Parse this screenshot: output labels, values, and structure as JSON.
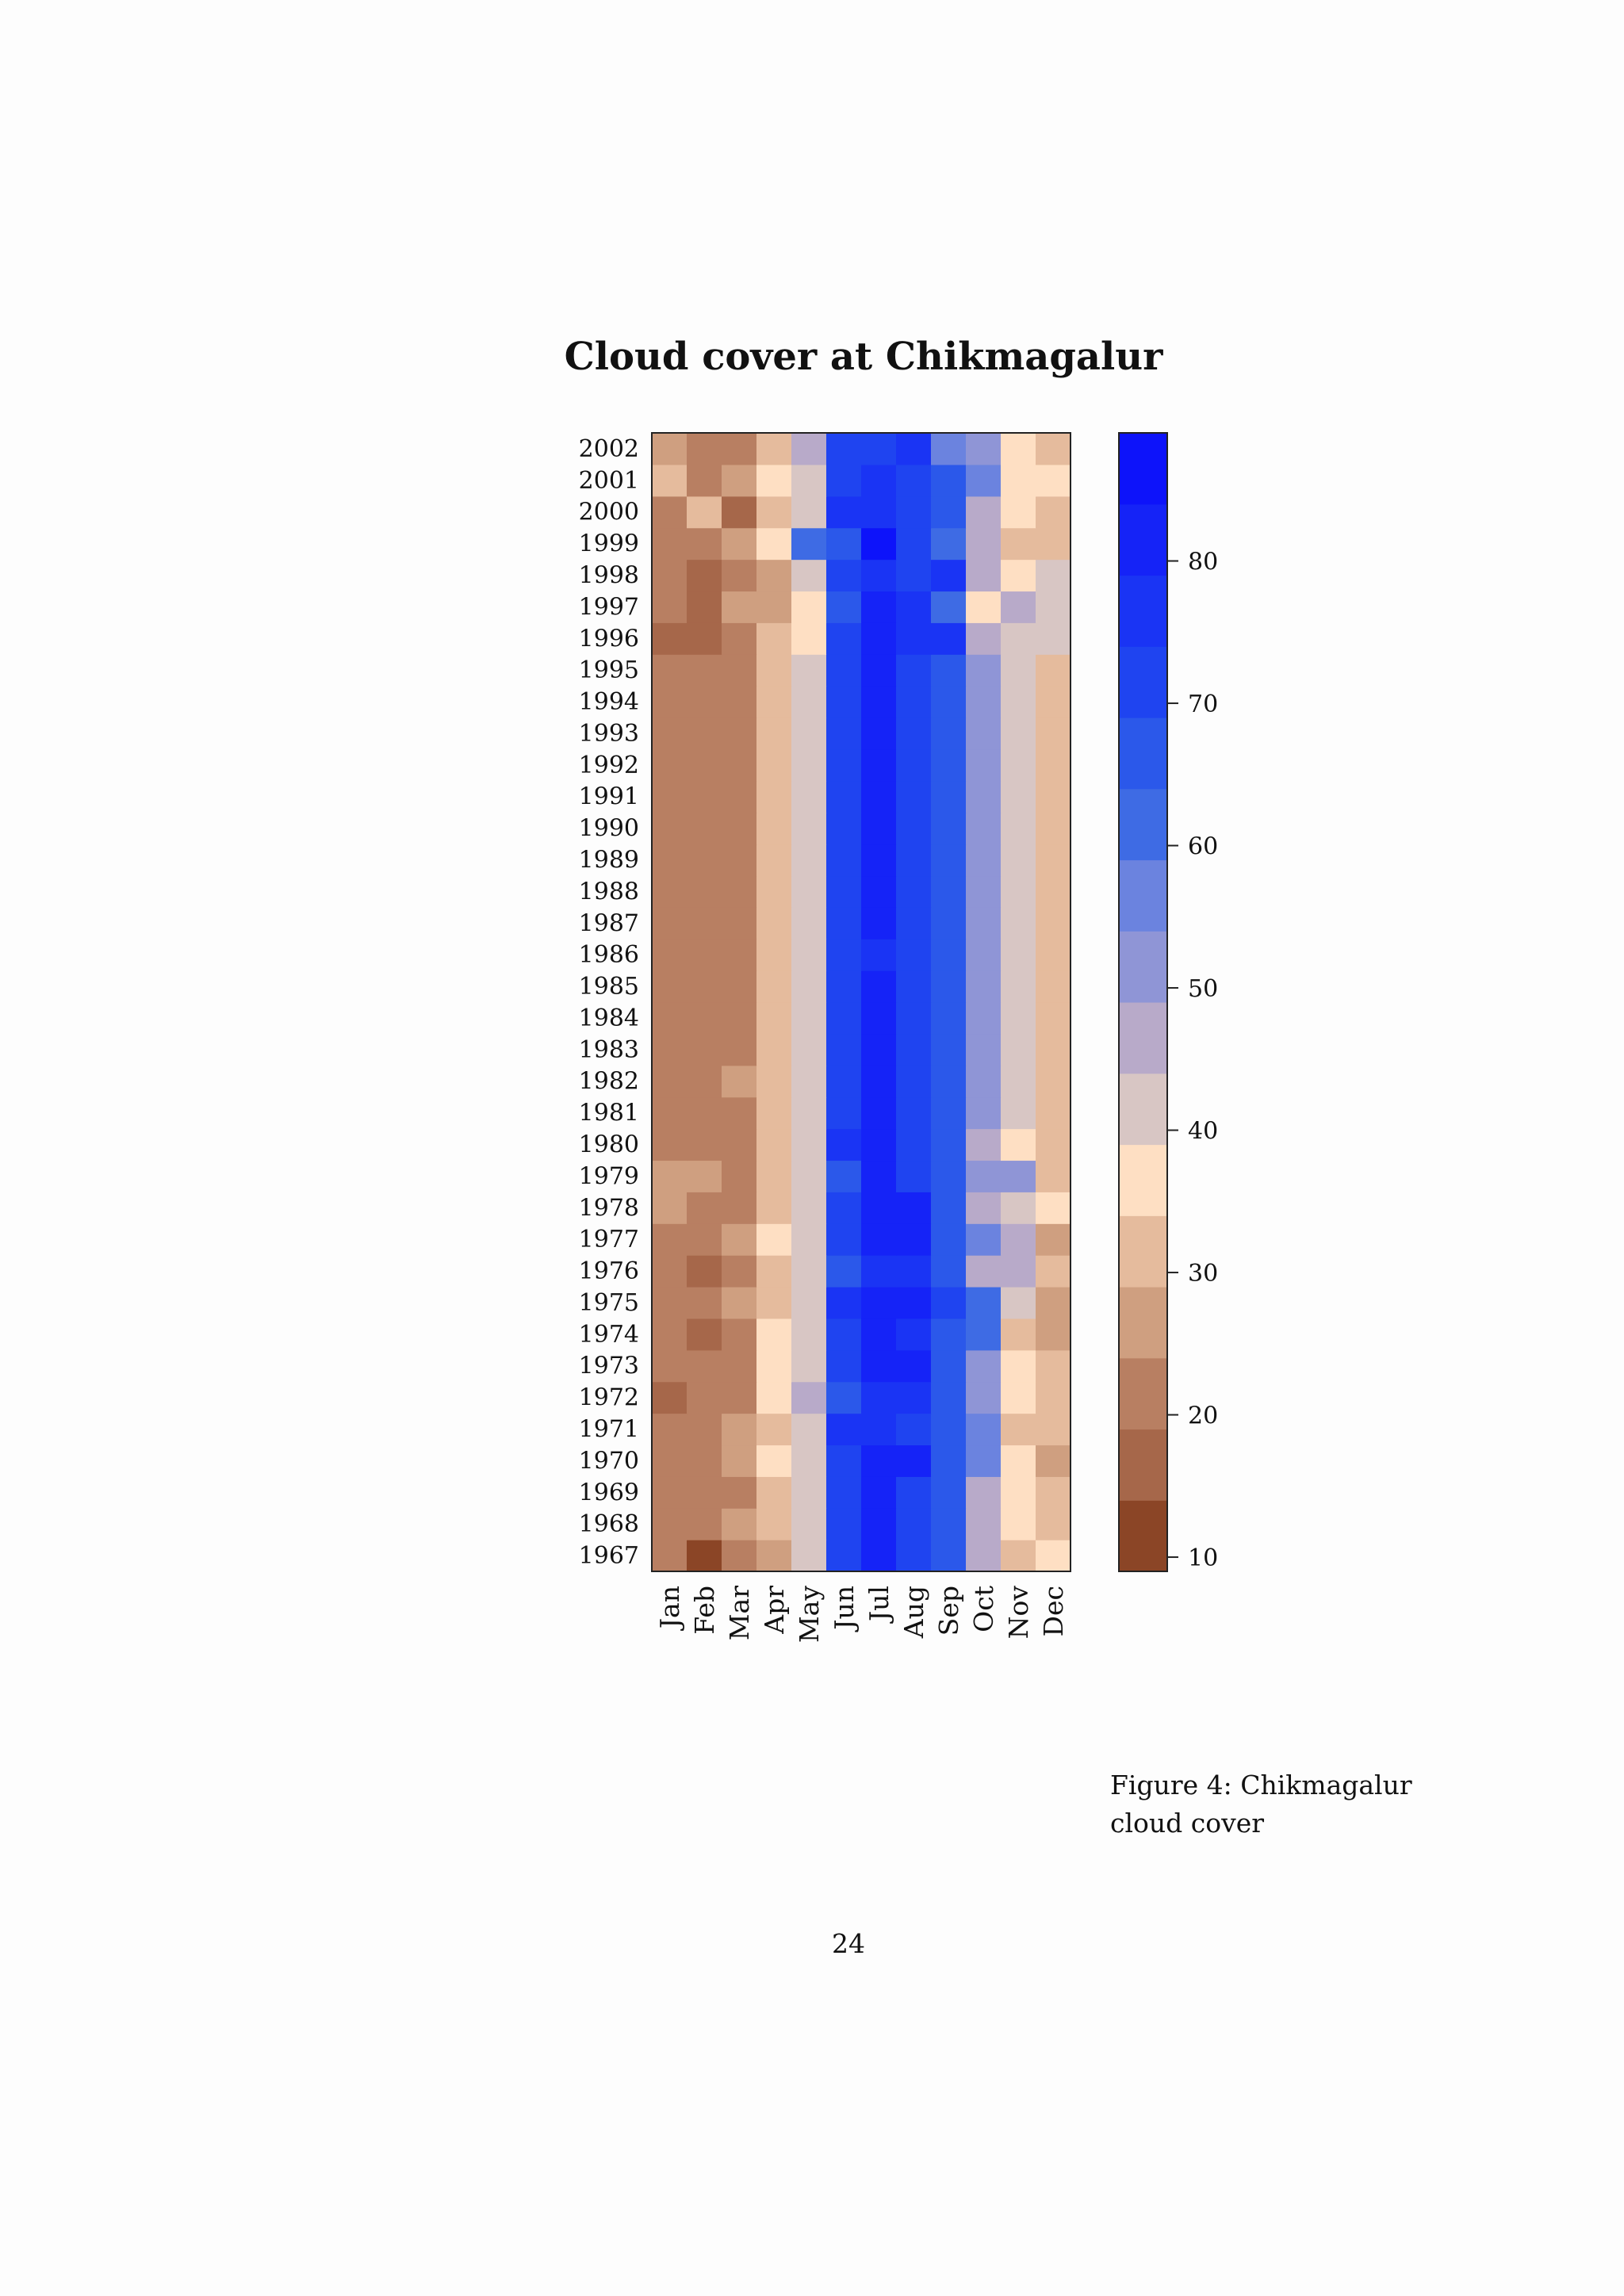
{
  "chart_data": {
    "type": "heatmap",
    "title": "Cloud cover at Chikmagalur",
    "xlabel": "",
    "ylabel": "",
    "x": [
      "Jan",
      "Feb",
      "Mar",
      "Apr",
      "May",
      "Jun",
      "Jul",
      "Aug",
      "Sep",
      "Oct",
      "Nov",
      "Dec"
    ],
    "y": [
      "1967",
      "1968",
      "1969",
      "1970",
      "1971",
      "1972",
      "1973",
      "1974",
      "1975",
      "1976",
      "1977",
      "1978",
      "1979",
      "1980",
      "1981",
      "1982",
      "1983",
      "1984",
      "1985",
      "1986",
      "1987",
      "1988",
      "1989",
      "1990",
      "1991",
      "1992",
      "1993",
      "1994",
      "1995",
      "1996",
      "1997",
      "1998",
      "1999",
      "2000",
      "2001",
      "2002"
    ],
    "values": [
      [
        22,
        12,
        22,
        27,
        42,
        72,
        82,
        72,
        67,
        47,
        32,
        37
      ],
      [
        22,
        22,
        27,
        32,
        42,
        72,
        82,
        72,
        67,
        47,
        37,
        32
      ],
      [
        22,
        22,
        22,
        32,
        42,
        72,
        82,
        72,
        67,
        47,
        37,
        32
      ],
      [
        22,
        22,
        27,
        37,
        42,
        72,
        82,
        82,
        67,
        57,
        37,
        27
      ],
      [
        22,
        22,
        27,
        32,
        42,
        77,
        77,
        72,
        67,
        57,
        32,
        32
      ],
      [
        17,
        22,
        22,
        37,
        47,
        67,
        77,
        77,
        67,
        52,
        37,
        32
      ],
      [
        22,
        22,
        22,
        37,
        42,
        72,
        82,
        82,
        67,
        52,
        37,
        32
      ],
      [
        22,
        17,
        22,
        37,
        42,
        72,
        82,
        77,
        67,
        62,
        32,
        27
      ],
      [
        22,
        22,
        27,
        32,
        42,
        77,
        82,
        82,
        72,
        62,
        42,
        27
      ],
      [
        22,
        17,
        22,
        32,
        42,
        67,
        77,
        77,
        67,
        47,
        47,
        32
      ],
      [
        22,
        22,
        27,
        37,
        42,
        72,
        82,
        82,
        67,
        57,
        47,
        27
      ],
      [
        27,
        22,
        22,
        32,
        42,
        72,
        82,
        82,
        67,
        47,
        42,
        37
      ],
      [
        27,
        27,
        22,
        32,
        42,
        67,
        82,
        72,
        67,
        52,
        52,
        32
      ],
      [
        22,
        22,
        22,
        32,
        42,
        77,
        82,
        72,
        67,
        47,
        37,
        32
      ],
      [
        22,
        22,
        22,
        32,
        42,
        72,
        82,
        72,
        67,
        52,
        42,
        32
      ],
      [
        22,
        22,
        27,
        32,
        42,
        72,
        82,
        72,
        67,
        52,
        42,
        32
      ],
      [
        22,
        22,
        22,
        32,
        42,
        72,
        82,
        72,
        67,
        52,
        42,
        32
      ],
      [
        22,
        22,
        22,
        32,
        42,
        72,
        82,
        72,
        67,
        52,
        42,
        32
      ],
      [
        22,
        22,
        22,
        32,
        42,
        72,
        82,
        72,
        67,
        52,
        42,
        32
      ],
      [
        22,
        22,
        22,
        32,
        42,
        72,
        77,
        72,
        67,
        52,
        42,
        32
      ],
      [
        22,
        22,
        22,
        32,
        42,
        72,
        82,
        72,
        67,
        52,
        42,
        32
      ],
      [
        22,
        22,
        22,
        32,
        42,
        72,
        82,
        72,
        67,
        52,
        42,
        32
      ],
      [
        22,
        22,
        22,
        32,
        42,
        72,
        82,
        72,
        67,
        52,
        42,
        32
      ],
      [
        22,
        22,
        22,
        32,
        42,
        72,
        82,
        72,
        67,
        52,
        42,
        32
      ],
      [
        22,
        22,
        22,
        32,
        42,
        72,
        82,
        72,
        67,
        52,
        42,
        32
      ],
      [
        22,
        22,
        22,
        32,
        42,
        72,
        82,
        72,
        67,
        52,
        42,
        32
      ],
      [
        22,
        22,
        22,
        32,
        42,
        72,
        82,
        72,
        67,
        52,
        42,
        32
      ],
      [
        22,
        22,
        22,
        32,
        42,
        72,
        82,
        72,
        67,
        52,
        42,
        32
      ],
      [
        22,
        22,
        22,
        32,
        42,
        72,
        82,
        72,
        67,
        52,
        42,
        32
      ],
      [
        17,
        17,
        22,
        32,
        37,
        72,
        82,
        77,
        77,
        47,
        42,
        42
      ],
      [
        22,
        17,
        27,
        27,
        37,
        67,
        82,
        77,
        62,
        37,
        47,
        42
      ],
      [
        22,
        17,
        22,
        27,
        42,
        72,
        77,
        72,
        77,
        47,
        37,
        42
      ],
      [
        22,
        22,
        27,
        37,
        62,
        67,
        87,
        72,
        62,
        47,
        32,
        32
      ],
      [
        22,
        32,
        17,
        32,
        42,
        77,
        77,
        72,
        67,
        47,
        37,
        32
      ],
      [
        32,
        22,
        27,
        37,
        42,
        72,
        77,
        72,
        67,
        57,
        37,
        37
      ],
      [
        27,
        22,
        22,
        32,
        47,
        72,
        72,
        77,
        57,
        52,
        37,
        32
      ]
    ],
    "colorbar": {
      "ticks": [
        10,
        20,
        30,
        40,
        50,
        60,
        70,
        80
      ],
      "range": [
        9,
        89
      ],
      "bins": [
        9,
        14,
        19,
        24,
        29,
        34,
        39,
        44,
        49,
        54,
        59,
        64,
        69,
        74,
        79,
        84,
        89
      ],
      "colors": [
        "#8b4526",
        "#a6674a",
        "#b87f62",
        "#cf9f80",
        "#e5bb9d",
        "#fedfc3",
        "#d8c6c4",
        "#b8aac9",
        "#8f95d6",
        "#6b83df",
        "#3e6be4",
        "#2b58ea",
        "#1f44f0",
        "#1a34f4",
        "#1523f7",
        "#0d13fa"
      ]
    }
  },
  "caption": "Figure 4: Chikmagalur cloud cover",
  "page_number": "24"
}
